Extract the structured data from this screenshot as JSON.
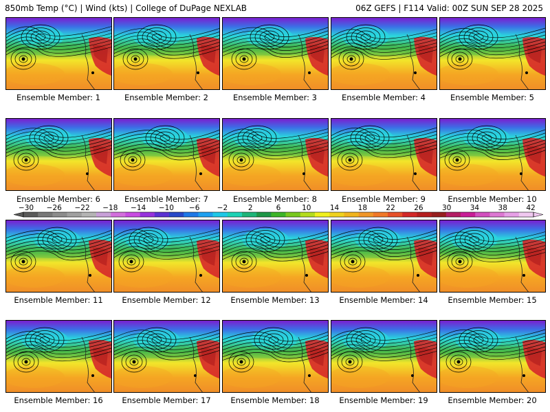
{
  "header": {
    "left": "850mb Temp (°C) | Wind (kts) | College of DuPage NEXLAB",
    "right": "06Z GEFS | F114 Valid: 00Z SUN SEP 28 2025"
  },
  "caption_prefix": "Ensemble Member:",
  "members": [
    {
      "number": "1"
    },
    {
      "number": "2"
    },
    {
      "number": "3"
    },
    {
      "number": "4"
    },
    {
      "number": "5"
    },
    {
      "number": "6"
    },
    {
      "number": "7"
    },
    {
      "number": "8"
    },
    {
      "number": "9"
    },
    {
      "number": "10"
    },
    {
      "number": "11"
    },
    {
      "number": "12"
    },
    {
      "number": "13"
    },
    {
      "number": "14"
    },
    {
      "number": "15"
    },
    {
      "number": "16"
    },
    {
      "number": "17"
    },
    {
      "number": "18"
    },
    {
      "number": "19"
    },
    {
      "number": "20"
    }
  ],
  "colorbar": {
    "labels": [
      "−30",
      "−26",
      "−22",
      "−18",
      "−14",
      "−10",
      "−6",
      "−2",
      "2",
      "6",
      "10",
      "14",
      "18",
      "22",
      "26",
      "30",
      "34",
      "38",
      "42"
    ],
    "colors": [
      "#5a5a5a",
      "#787878",
      "#8c8c8c",
      "#a0a0a0",
      "#b4b4b4",
      "#c8a0d8",
      "#d26edc",
      "#c84be1",
      "#9632dc",
      "#5a32d2",
      "#2848c8",
      "#1e78e6",
      "#1ea0f0",
      "#1ec8e6",
      "#1ed2b4",
      "#1eb478",
      "#1e9646",
      "#3cb428",
      "#78c81e",
      "#b4dc1e",
      "#f0f01e",
      "#f0d21e",
      "#f0b41e",
      "#f09628",
      "#f07828",
      "#e65028",
      "#d22828",
      "#b41e1e",
      "#961e1e",
      "#b41e64",
      "#c81e96",
      "#d250be",
      "#dc78d2",
      "#e6a0e6",
      "#f0c8f0"
    ]
  },
  "colors": {
    "cold": "#7a1fd0",
    "cyan": "#2ad7dd",
    "green": "#46b84a",
    "yellow": "#f2e62a",
    "orange": "#f5a623",
    "red": "#d6282a"
  }
}
